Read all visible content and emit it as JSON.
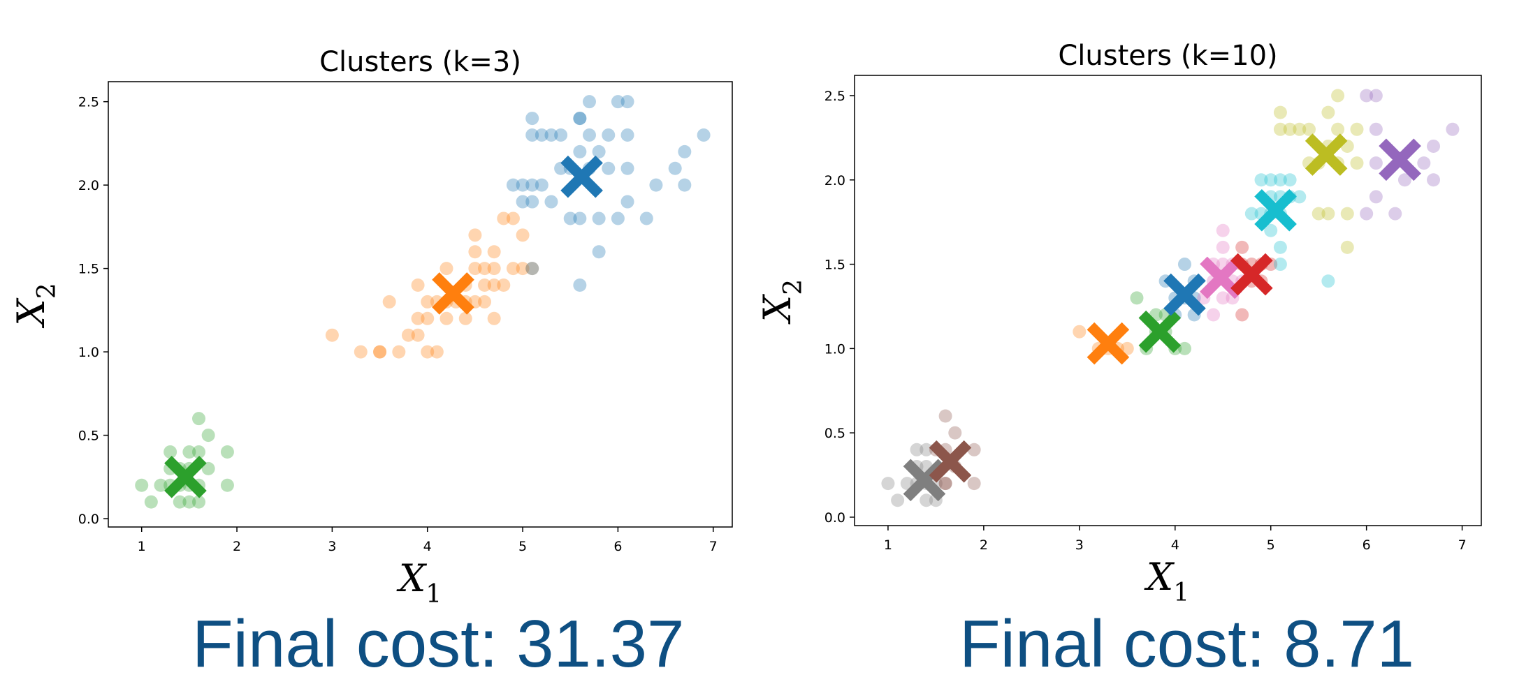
{
  "chart_data": [
    {
      "type": "scatter",
      "title": "Clusters (k=3)",
      "xlabel": "X",
      "xlabel_sub": "1",
      "ylabel": "X",
      "ylabel_sub": "2",
      "xlim": [
        0.65,
        7.2
      ],
      "ylim": [
        -0.05,
        2.62
      ],
      "xticks": [
        1,
        2,
        3,
        4,
        5,
        6,
        7
      ],
      "yticks": [
        "0.0",
        "0.5",
        "1.0",
        "1.5",
        "2.0",
        "2.5"
      ],
      "grid": false,
      "caption_label": "Final cost:",
      "caption_value": "31.37",
      "clusters": [
        {
          "color": "#2ca02c",
          "centroid": [
            1.46,
            0.25
          ],
          "points": [
            [
              1.0,
              0.2
            ],
            [
              1.1,
              0.1
            ],
            [
              1.2,
              0.2
            ],
            [
              1.3,
              0.2
            ],
            [
              1.3,
              0.3
            ],
            [
              1.3,
              0.4
            ],
            [
              1.4,
              0.1
            ],
            [
              1.4,
              0.2
            ],
            [
              1.4,
              0.3
            ],
            [
              1.5,
              0.1
            ],
            [
              1.5,
              0.2
            ],
            [
              1.5,
              0.4
            ],
            [
              1.6,
              0.2
            ],
            [
              1.6,
              0.4
            ],
            [
              1.6,
              0.6
            ],
            [
              1.7,
              0.3
            ],
            [
              1.7,
              0.5
            ],
            [
              1.9,
              0.2
            ],
            [
              1.9,
              0.4
            ],
            [
              1.5,
              0.3
            ],
            [
              1.6,
              0.1
            ]
          ]
        },
        {
          "color": "#ff7f0e",
          "centroid": [
            4.27,
            1.35
          ],
          "points": [
            [
              3.0,
              1.1
            ],
            [
              3.3,
              1.0
            ],
            [
              3.5,
              1.0
            ],
            [
              3.5,
              1.0
            ],
            [
              3.6,
              1.3
            ],
            [
              3.7,
              1.0
            ],
            [
              3.8,
              1.1
            ],
            [
              3.9,
              1.1
            ],
            [
              3.9,
              1.2
            ],
            [
              3.9,
              1.4
            ],
            [
              4.0,
              1.0
            ],
            [
              4.0,
              1.2
            ],
            [
              4.0,
              1.3
            ],
            [
              4.1,
              1.0
            ],
            [
              4.1,
              1.3
            ],
            [
              4.2,
              1.2
            ],
            [
              4.2,
              1.3
            ],
            [
              4.2,
              1.5
            ],
            [
              4.3,
              1.3
            ],
            [
              4.4,
              1.2
            ],
            [
              4.4,
              1.4
            ],
            [
              4.5,
              1.3
            ],
            [
              4.5,
              1.5
            ],
            [
              4.5,
              1.6
            ],
            [
              4.5,
              1.7
            ],
            [
              4.6,
              1.3
            ],
            [
              4.6,
              1.4
            ],
            [
              4.6,
              1.5
            ],
            [
              4.7,
              1.2
            ],
            [
              4.7,
              1.4
            ],
            [
              4.7,
              1.5
            ],
            [
              4.7,
              1.6
            ],
            [
              4.8,
              1.4
            ],
            [
              4.8,
              1.8
            ],
            [
              4.9,
              1.5
            ],
            [
              4.9,
              1.8
            ],
            [
              5.0,
              1.5
            ],
            [
              5.0,
              1.7
            ],
            [
              5.1,
              1.5
            ],
            [
              4.4,
              1.3
            ]
          ]
        },
        {
          "color": "#1f77b4",
          "centroid": [
            5.62,
            2.05
          ],
          "points": [
            [
              4.9,
              2.0
            ],
            [
              5.0,
              1.9
            ],
            [
              5.0,
              2.0
            ],
            [
              5.1,
              1.5
            ],
            [
              5.1,
              1.9
            ],
            [
              5.1,
              2.0
            ],
            [
              5.1,
              2.3
            ],
            [
              5.1,
              2.4
            ],
            [
              5.2,
              2.0
            ],
            [
              5.2,
              2.3
            ],
            [
              5.3,
              1.9
            ],
            [
              5.3,
              2.3
            ],
            [
              5.4,
              2.1
            ],
            [
              5.4,
              2.3
            ],
            [
              5.5,
              1.8
            ],
            [
              5.5,
              2.1
            ],
            [
              5.6,
              1.4
            ],
            [
              5.6,
              1.8
            ],
            [
              5.6,
              2.2
            ],
            [
              5.6,
              2.4
            ],
            [
              5.6,
              2.4
            ],
            [
              5.7,
              2.1
            ],
            [
              5.7,
              2.3
            ],
            [
              5.7,
              2.5
            ],
            [
              5.8,
              1.6
            ],
            [
              5.8,
              1.8
            ],
            [
              5.8,
              2.2
            ],
            [
              5.9,
              2.1
            ],
            [
              5.9,
              2.3
            ],
            [
              6.0,
              1.8
            ],
            [
              6.0,
              2.5
            ],
            [
              6.1,
              1.9
            ],
            [
              6.1,
              2.1
            ],
            [
              6.1,
              2.3
            ],
            [
              6.1,
              2.5
            ],
            [
              6.3,
              1.8
            ],
            [
              6.4,
              2.0
            ],
            [
              6.6,
              2.1
            ],
            [
              6.7,
              2.0
            ],
            [
              6.7,
              2.2
            ],
            [
              6.9,
              2.3
            ]
          ]
        }
      ]
    },
    {
      "type": "scatter",
      "title": "Clusters (k=10)",
      "xlabel": "X",
      "xlabel_sub": "1",
      "ylabel": "X",
      "ylabel_sub": "2",
      "xlim": [
        0.65,
        7.2
      ],
      "ylim": [
        -0.05,
        2.62
      ],
      "xticks": [
        1,
        2,
        3,
        4,
        5,
        6,
        7
      ],
      "yticks": [
        "0.0",
        "0.5",
        "1.0",
        "1.5",
        "2.0",
        "2.5"
      ],
      "grid": false,
      "caption_label": "Final cost:",
      "caption_value": "8.71",
      "clusters": [
        {
          "color": "#7f7f7f",
          "centroid": [
            1.38,
            0.22
          ],
          "points": [
            [
              1.0,
              0.2
            ],
            [
              1.1,
              0.1
            ],
            [
              1.2,
              0.2
            ],
            [
              1.3,
              0.2
            ],
            [
              1.3,
              0.3
            ],
            [
              1.4,
              0.1
            ],
            [
              1.4,
              0.2
            ],
            [
              1.4,
              0.3
            ],
            [
              1.5,
              0.1
            ],
            [
              1.5,
              0.2
            ],
            [
              1.3,
              0.4
            ],
            [
              1.4,
              0.4
            ]
          ]
        },
        {
          "color": "#8c564b",
          "centroid": [
            1.65,
            0.33
          ],
          "points": [
            [
              1.6,
              0.2
            ],
            [
              1.6,
              0.4
            ],
            [
              1.6,
              0.6
            ],
            [
              1.7,
              0.3
            ],
            [
              1.7,
              0.5
            ],
            [
              1.9,
              0.2
            ],
            [
              1.9,
              0.4
            ],
            [
              1.5,
              0.4
            ],
            [
              1.6,
              0.2
            ]
          ]
        },
        {
          "color": "#ff7f0e",
          "centroid": [
            3.3,
            1.03
          ],
          "points": [
            [
              3.0,
              1.1
            ],
            [
              3.3,
              1.0
            ],
            [
              3.5,
              1.0
            ],
            [
              3.4,
              1.0
            ],
            [
              3.2,
              1.0
            ]
          ]
        },
        {
          "color": "#2ca02c",
          "centroid": [
            3.84,
            1.1
          ],
          "points": [
            [
              3.6,
              1.3
            ],
            [
              3.7,
              1.0
            ],
            [
              3.8,
              1.1
            ],
            [
              3.9,
              1.1
            ],
            [
              3.9,
              1.2
            ],
            [
              4.0,
              1.0
            ],
            [
              4.1,
              1.0
            ],
            [
              3.8,
              1.2
            ]
          ]
        },
        {
          "color": "#1f77b4",
          "centroid": [
            4.1,
            1.32
          ],
          "points": [
            [
              4.0,
              1.3
            ],
            [
              4.0,
              1.2
            ],
            [
              4.1,
              1.3
            ],
            [
              4.2,
              1.2
            ],
            [
              4.2,
              1.3
            ],
            [
              4.1,
              1.5
            ],
            [
              4.2,
              1.4
            ],
            [
              3.9,
              1.4
            ]
          ]
        },
        {
          "color": "#e377c2",
          "centroid": [
            4.48,
            1.42
          ],
          "points": [
            [
              4.3,
              1.3
            ],
            [
              4.4,
              1.2
            ],
            [
              4.4,
              1.4
            ],
            [
              4.5,
              1.3
            ],
            [
              4.5,
              1.5
            ],
            [
              4.5,
              1.6
            ],
            [
              4.5,
              1.7
            ],
            [
              4.6,
              1.3
            ],
            [
              4.6,
              1.4
            ],
            [
              4.6,
              1.5
            ],
            [
              4.4,
              1.5
            ],
            [
              4.7,
              1.4
            ]
          ]
        },
        {
          "color": "#d62728",
          "centroid": [
            4.8,
            1.44
          ],
          "points": [
            [
              4.7,
              1.2
            ],
            [
              4.7,
              1.5
            ],
            [
              4.7,
              1.6
            ],
            [
              4.8,
              1.4
            ],
            [
              4.9,
              1.5
            ],
            [
              5.0,
              1.5
            ],
            [
              4.8,
              1.5
            ],
            [
              4.9,
              1.4
            ]
          ]
        },
        {
          "color": "#17becf",
          "centroid": [
            5.05,
            1.82
          ],
          "points": [
            [
              4.8,
              1.8
            ],
            [
              4.9,
              1.8
            ],
            [
              4.9,
              2.0
            ],
            [
              5.0,
              1.7
            ],
            [
              5.0,
              1.9
            ],
            [
              5.0,
              2.0
            ],
            [
              5.1,
              1.5
            ],
            [
              5.1,
              1.6
            ],
            [
              5.1,
              1.9
            ],
            [
              5.1,
              2.0
            ],
            [
              5.2,
              1.9
            ],
            [
              5.2,
              2.0
            ],
            [
              5.3,
              1.9
            ],
            [
              5.0,
              1.8
            ],
            [
              5.1,
              1.8
            ],
            [
              5.6,
              1.4
            ]
          ]
        },
        {
          "color": "#bcbd22",
          "centroid": [
            5.58,
            2.15
          ],
          "points": [
            [
              5.1,
              2.3
            ],
            [
              5.1,
              2.4
            ],
            [
              5.2,
              2.3
            ],
            [
              5.3,
              2.3
            ],
            [
              5.4,
              2.1
            ],
            [
              5.4,
              2.3
            ],
            [
              5.5,
              1.8
            ],
            [
              5.5,
              2.1
            ],
            [
              5.6,
              1.8
            ],
            [
              5.6,
              2.2
            ],
            [
              5.6,
              2.4
            ],
            [
              5.7,
              2.1
            ],
            [
              5.7,
              2.3
            ],
            [
              5.7,
              2.5
            ],
            [
              5.8,
              1.6
            ],
            [
              5.8,
              1.8
            ],
            [
              5.8,
              2.2
            ],
            [
              5.9,
              2.1
            ],
            [
              5.9,
              2.3
            ]
          ]
        },
        {
          "color": "#9467bd",
          "centroid": [
            6.35,
            2.12
          ],
          "points": [
            [
              6.0,
              1.8
            ],
            [
              6.0,
              2.5
            ],
            [
              6.1,
              1.9
            ],
            [
              6.1,
              2.1
            ],
            [
              6.1,
              2.3
            ],
            [
              6.1,
              2.5
            ],
            [
              6.3,
              1.8
            ],
            [
              6.4,
              2.0
            ],
            [
              6.6,
              2.1
            ],
            [
              6.7,
              2.0
            ],
            [
              6.7,
              2.2
            ],
            [
              6.9,
              2.3
            ]
          ]
        }
      ]
    }
  ]
}
